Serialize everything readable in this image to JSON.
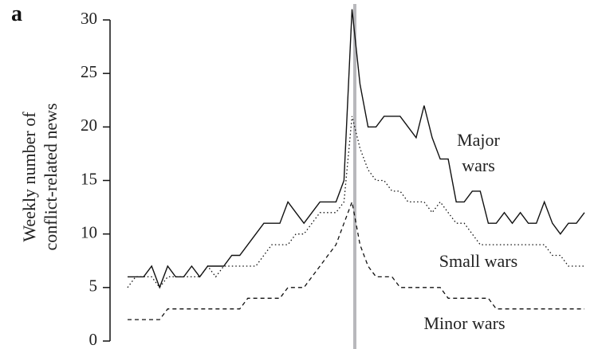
{
  "chart_data": {
    "type": "line",
    "panel_label": "a",
    "y_label": "Weekly number of conflict-related news",
    "categories": [
      null,
      null,
      null,
      null,
      null,
      null,
      null,
      null,
      null,
      null,
      null,
      null,
      null,
      null,
      null,
      null,
      null,
      null,
      null,
      null,
      null,
      null,
      null,
      null,
      null,
      null,
      null,
      null,
      null,
      null,
      null,
      null,
      null,
      null,
      null,
      null,
      null,
      null,
      null,
      null,
      null,
      null,
      null,
      null,
      null,
      null,
      null,
      null,
      null,
      null,
      null,
      null,
      null,
      null,
      null,
      null,
      null,
      null
    ],
    "ylim": [
      0,
      30
    ],
    "yticks": [
      0,
      5,
      10,
      15,
      20,
      25,
      30
    ],
    "series": [
      {
        "name": "Major wars",
        "color": "#111111",
        "dash": "solid",
        "values": [
          6,
          6,
          6,
          7,
          5,
          7,
          6,
          6,
          7,
          6,
          7,
          7,
          7,
          8,
          8,
          9,
          10,
          11,
          11,
          11,
          13,
          12,
          11,
          12,
          13,
          13,
          13,
          15,
          31,
          24,
          20,
          20,
          21,
          21,
          21,
          20,
          19,
          22,
          19,
          17,
          17,
          13,
          13,
          14,
          14,
          11,
          11,
          12,
          11,
          12,
          11,
          11,
          13,
          11,
          10,
          11,
          11,
          12
        ]
      },
      {
        "name": "Small wars",
        "color": "#111111",
        "dash": "dotted",
        "values": [
          5,
          6,
          6,
          6,
          5,
          6,
          6,
          6,
          6,
          6,
          7,
          6,
          7,
          7,
          7,
          7,
          7,
          8,
          9,
          9,
          9,
          10,
          10,
          11,
          12,
          12,
          12,
          13,
          21,
          18,
          16,
          15,
          15,
          14,
          14,
          13,
          13,
          13,
          12,
          13,
          12,
          11,
          11,
          10,
          9,
          9,
          9,
          9,
          9,
          9,
          9,
          9,
          9,
          8,
          8,
          7,
          7,
          7
        ]
      },
      {
        "name": "Minor wars",
        "color": "#111111",
        "dash": "dashed",
        "values": [
          2,
          2,
          2,
          2,
          2,
          3,
          3,
          3,
          3,
          3,
          3,
          3,
          3,
          3,
          3,
          4,
          4,
          4,
          4,
          4,
          5,
          5,
          5,
          6,
          7,
          8,
          9,
          11,
          13,
          9,
          7,
          6,
          6,
          6,
          5,
          5,
          5,
          5,
          5,
          5,
          4,
          4,
          4,
          4,
          4,
          4,
          3,
          3,
          3,
          3,
          3,
          3,
          3,
          3,
          3,
          3,
          3,
          3
        ]
      }
    ]
  }
}
